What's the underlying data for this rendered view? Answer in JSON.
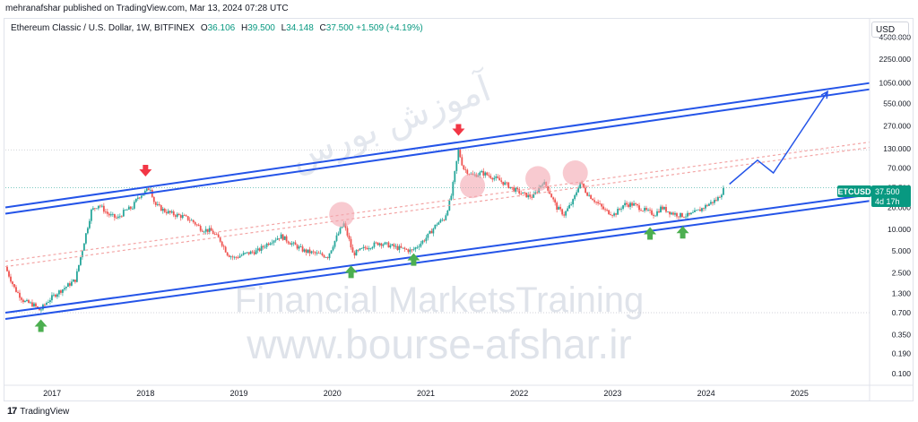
{
  "header": {
    "published": "mehranafshar published on TradingView.com, Mar 13, 2024 07:28 UTC"
  },
  "legend": {
    "symbol": "Ethereum Classic / U.S. Dollar, 1W, BITFINEX",
    "o_label": "O",
    "o": "36.106",
    "h_label": "H",
    "h": "39.500",
    "l_label": "L",
    "l": "34.148",
    "c_label": "C",
    "c": "37.500",
    "change": "+1.509 (+4.19%)"
  },
  "currency": "USD",
  "price_tag": {
    "symbol": "ETCUSD",
    "price": "37.500",
    "countdown": "4d 17h"
  },
  "watermark": {
    "line1": "Financial MarketsTraining",
    "line2": "www.bourse-afshar.ir",
    "persian": "آموزش بورس"
  },
  "footer": {
    "brand": "TradingView"
  },
  "colors": {
    "up": "#26a69a",
    "down": "#ef5350",
    "channel": "#2454e8",
    "arrow_up": "#4caf50",
    "arrow_down": "#f23645",
    "circle": "#f4a7b0",
    "dashed": "#f3a5a5"
  },
  "chart_data": {
    "type": "candlestick",
    "title": "",
    "y_scale": "log",
    "ylim": [
      0.08,
      5000
    ],
    "xlim": [
      2016.5,
      2025.75
    ],
    "y_ticks": [
      "4500.000",
      "2250.000",
      "1050.000",
      "550.000",
      "270.000",
      "130.000",
      "70.000",
      "37.500",
      "20.000",
      "10.000",
      "5.000",
      "2.500",
      "1.300",
      "0.700",
      "0.350",
      "0.190",
      "0.100"
    ],
    "x_ticks": [
      "2017",
      "2018",
      "2019",
      "2020",
      "2021",
      "2022",
      "2023",
      "2024",
      "2025"
    ],
    "price_path": [
      [
        2016.5,
        3.0
      ],
      [
        2016.6,
        1.5
      ],
      [
        2016.7,
        1.0
      ],
      [
        2016.8,
        0.9
      ],
      [
        2016.87,
        0.75
      ],
      [
        2016.95,
        1.0
      ],
      [
        2017.05,
        1.3
      ],
      [
        2017.15,
        1.6
      ],
      [
        2017.25,
        2.0
      ],
      [
        2017.32,
        5.0
      ],
      [
        2017.42,
        18.0
      ],
      [
        2017.5,
        22.0
      ],
      [
        2017.6,
        16.0
      ],
      [
        2017.7,
        14.0
      ],
      [
        2017.78,
        18.0
      ],
      [
        2017.86,
        20.0
      ],
      [
        2017.92,
        28.0
      ],
      [
        2018.0,
        33.0
      ],
      [
        2018.05,
        38.0
      ],
      [
        2018.1,
        22.0
      ],
      [
        2018.2,
        18.0
      ],
      [
        2018.3,
        16.0
      ],
      [
        2018.4,
        15.0
      ],
      [
        2018.5,
        13.0
      ],
      [
        2018.6,
        10.0
      ],
      [
        2018.7,
        9.5
      ],
      [
        2018.8,
        7.0
      ],
      [
        2018.88,
        4.5
      ],
      [
        2018.95,
        4.0
      ],
      [
        2019.05,
        4.5
      ],
      [
        2019.2,
        5.0
      ],
      [
        2019.35,
        7.0
      ],
      [
        2019.45,
        8.0
      ],
      [
        2019.55,
        6.5
      ],
      [
        2019.7,
        5.0
      ],
      [
        2019.85,
        4.5
      ],
      [
        2019.95,
        4.2
      ],
      [
        2020.05,
        8.0
      ],
      [
        2020.12,
        12.0
      ],
      [
        2020.18,
        7.0
      ],
      [
        2020.22,
        4.5
      ],
      [
        2020.35,
        5.5
      ],
      [
        2020.5,
        6.5
      ],
      [
        2020.6,
        6.0
      ],
      [
        2020.7,
        5.5
      ],
      [
        2020.85,
        5.0
      ],
      [
        2020.95,
        6.5
      ],
      [
        2021.02,
        8.0
      ],
      [
        2021.12,
        12.0
      ],
      [
        2021.2,
        14.0
      ],
      [
        2021.27,
        28.0
      ],
      [
        2021.35,
        125.0
      ],
      [
        2021.4,
        70.0
      ],
      [
        2021.5,
        55.0
      ],
      [
        2021.6,
        60.0
      ],
      [
        2021.68,
        55.0
      ],
      [
        2021.78,
        48.0
      ],
      [
        2021.88,
        40.0
      ],
      [
        2021.95,
        35.0
      ],
      [
        2022.05,
        30.0
      ],
      [
        2022.15,
        28.0
      ],
      [
        2022.25,
        45.0
      ],
      [
        2022.3,
        38.0
      ],
      [
        2022.4,
        20.0
      ],
      [
        2022.48,
        16.0
      ],
      [
        2022.58,
        25.0
      ],
      [
        2022.65,
        45.0
      ],
      [
        2022.72,
        32.0
      ],
      [
        2022.82,
        24.0
      ],
      [
        2022.92,
        18.0
      ],
      [
        2023.02,
        16.0
      ],
      [
        2023.12,
        22.0
      ],
      [
        2023.22,
        22.0
      ],
      [
        2023.35,
        18.0
      ],
      [
        2023.45,
        16.0
      ],
      [
        2023.52,
        20.0
      ],
      [
        2023.62,
        17.0
      ],
      [
        2023.72,
        15.5
      ],
      [
        2023.82,
        15.5
      ],
      [
        2023.92,
        18.0
      ],
      [
        2024.02,
        22.0
      ],
      [
        2024.12,
        26.0
      ],
      [
        2024.2,
        37.5
      ]
    ],
    "upper_channel": {
      "start": {
        "x": 2016.5,
        "y": 20.0
      },
      "end": {
        "x": 2025.75,
        "y": 1050.0
      }
    },
    "lower_channel": {
      "start": {
        "x": 2016.5,
        "y": 0.7
      },
      "end": {
        "x": 2025.75,
        "y": 30.0
      }
    },
    "mid_line": {
      "start": {
        "x": 2016.5,
        "y": 3.6
      },
      "end": {
        "x": 2025.75,
        "y": 160.0
      }
    },
    "projection": [
      [
        2024.25,
        42.0
      ],
      [
        2024.55,
        90.0
      ],
      [
        2024.72,
        60.0
      ],
      [
        2025.3,
        800.0
      ]
    ],
    "down_markers": [
      [
        2018.0,
        60.0
      ],
      [
        2021.35,
        220.0
      ]
    ],
    "up_markers": [
      [
        2016.88,
        0.45
      ],
      [
        2020.2,
        2.5
      ],
      [
        2020.87,
        3.7
      ],
      [
        2023.4,
        8.5
      ],
      [
        2023.75,
        8.8
      ]
    ],
    "circles": [
      [
        2020.1,
        16.0
      ],
      [
        2021.5,
        40.0
      ],
      [
        2022.2,
        50.0
      ],
      [
        2022.6,
        60.0
      ]
    ],
    "hlines": [
      125.0,
      37.5,
      0.7
    ]
  }
}
